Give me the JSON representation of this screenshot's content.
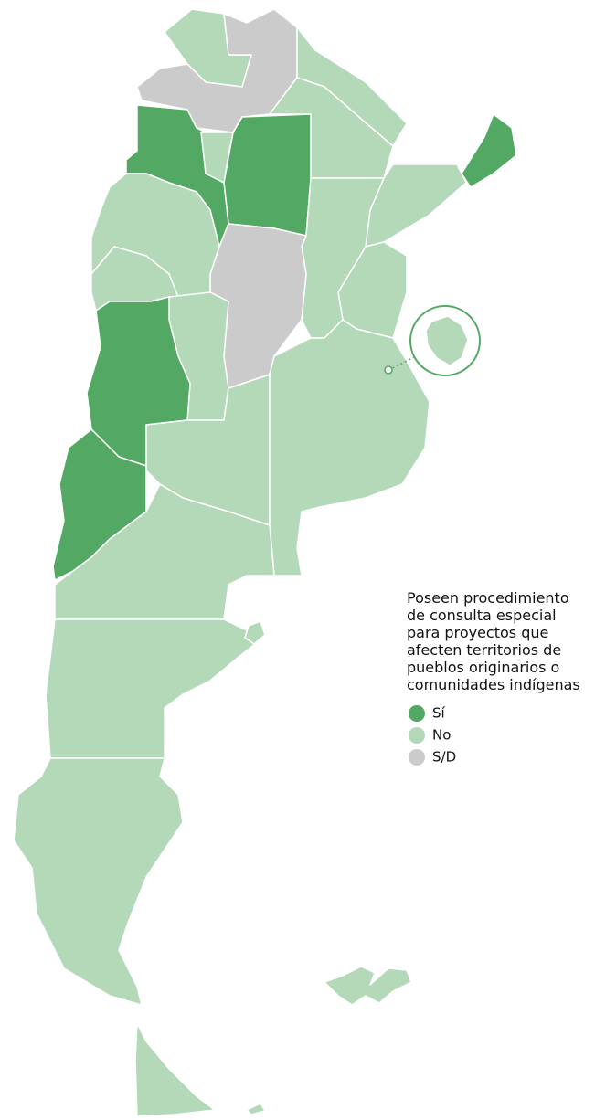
{
  "legend": {
    "title": [
      "Poseen procedimiento",
      "de consulta especial",
      "para proyectos que",
      "afecten territorios de",
      "pueblos originarios o",
      "comunidades indígenas"
    ],
    "items": [
      {
        "label": "Sí",
        "color": "#53a963"
      },
      {
        "label": "No",
        "color": "#b3d9b9"
      },
      {
        "label": "S/D",
        "color": "#cbcbcb"
      }
    ]
  }
}
